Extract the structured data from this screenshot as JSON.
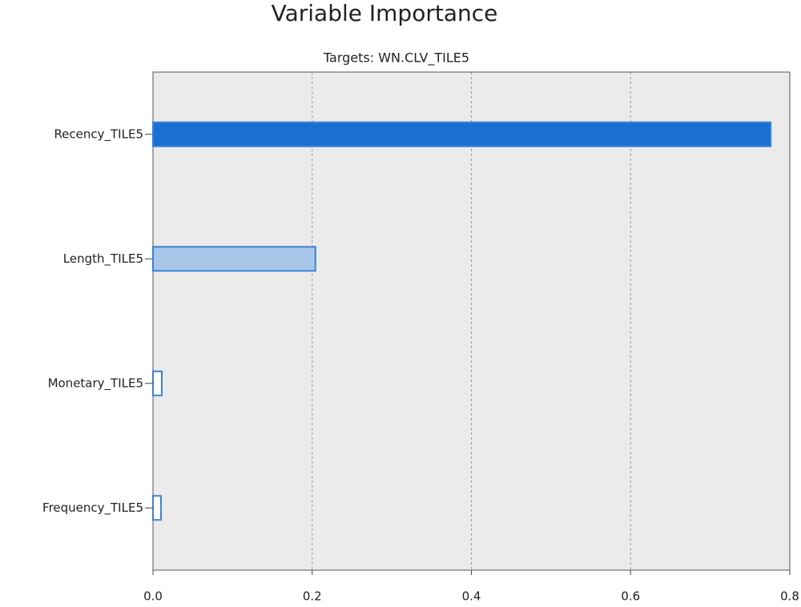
{
  "chart_data": {
    "type": "bar",
    "orientation": "horizontal",
    "title": "Variable Importance",
    "subtitle": "Targets: WN.CLV_TILE5",
    "categories": [
      "Recency_TILE5",
      "Length_TILE5",
      "Monetary_TILE5",
      "Frequency_TILE5"
    ],
    "values": [
      0.776,
      0.204,
      0.011,
      0.01
    ],
    "colors": [
      "#1b6fd0",
      "#a8c6e8",
      "#ffffff",
      "#ffffff"
    ],
    "edge_color": "#3b82d6",
    "xlim": [
      0,
      0.8
    ],
    "xticks": [
      {
        "value": 0,
        "label": "0.0"
      },
      0.2,
      0.4,
      0.6,
      0.8
    ],
    "grid": true
  }
}
